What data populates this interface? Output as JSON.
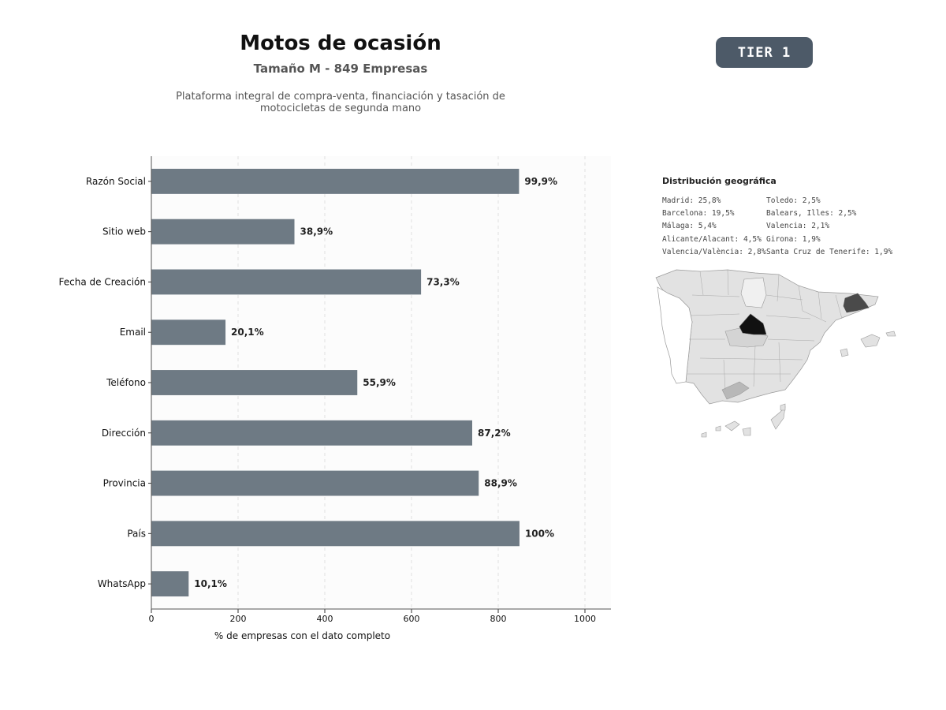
{
  "header": {
    "title": "Motos de ocasión",
    "subtitle": "Tamaño M - 849 Empresas",
    "description_lines": [
      "Plataforma integral de compra-venta, financiación y tasación de",
      "motocicletas de segunda mano"
    ],
    "tier_label": "TIER 1"
  },
  "chart_data": {
    "type": "bar",
    "orientation": "horizontal",
    "categories": [
      "Razón Social",
      "Sitio web",
      "Fecha de Creación",
      "Email",
      "Teléfono",
      "Dirección",
      "Provincia",
      "País",
      "WhatsApp"
    ],
    "values": [
      848,
      330,
      622,
      171,
      475,
      740,
      755,
      849,
      86
    ],
    "data_labels": [
      "99,9%",
      "38,9%",
      "73,3%",
      "20,1%",
      "55,9%",
      "87,2%",
      "88,9%",
      "100%",
      "10,1%"
    ],
    "xlabel": "% de empresas con el dato completo",
    "ylabel": "",
    "xlim": [
      0,
      1060
    ],
    "xticks": [
      0,
      200,
      400,
      600,
      800,
      1000
    ],
    "grid": "vertical dashed",
    "bar_color": "#6e7a84"
  },
  "geo": {
    "title": "Distribución geográfica",
    "column_1": [
      "Madrid: 25,8%",
      "Barcelona: 19,5%",
      "Málaga: 5,4%",
      "Alicante/Alacant: 4,5%",
      "Valencia/València: 2,8%"
    ],
    "column_2": [
      "Toledo: 2,5%",
      "Balears, Illes: 2,5%",
      "Valencia: 2,1%",
      "Girona: 1,9%",
      "Santa Cruz de Tenerife: 1,9%"
    ]
  },
  "colors": {
    "badge_bg": "#4d5a68",
    "map_base": "#e2e2e2",
    "map_madrid": "#111111",
    "map_barcelona": "#4a4a4a",
    "map_malaga": "#b8b8b8"
  }
}
